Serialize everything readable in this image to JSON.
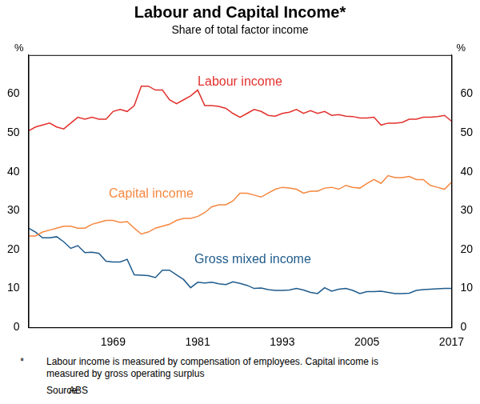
{
  "chart_data": {
    "type": "line",
    "title": "Labour and Capital Income*",
    "subtitle": "Share of total factor income",
    "ylabel": "%",
    "y2label": "%",
    "x": [
      1957,
      1958,
      1959,
      1960,
      1961,
      1962,
      1963,
      1964,
      1965,
      1966,
      1967,
      1968,
      1969,
      1970,
      1971,
      1972,
      1973,
      1974,
      1975,
      1976,
      1977,
      1978,
      1979,
      1980,
      1981,
      1982,
      1983,
      1984,
      1985,
      1986,
      1987,
      1988,
      1989,
      1990,
      1991,
      1992,
      1993,
      1994,
      1995,
      1996,
      1997,
      1998,
      1999,
      2000,
      2001,
      2002,
      2003,
      2004,
      2005,
      2006,
      2007,
      2008,
      2009,
      2010,
      2011,
      2012,
      2013,
      2014,
      2015,
      2016,
      2017
    ],
    "xlim": [
      1957,
      2017
    ],
    "xticks": [
      1969,
      1981,
      1993,
      2005,
      2017
    ],
    "ylim": [
      0,
      70
    ],
    "yticks": [
      0,
      10,
      20,
      30,
      40,
      50,
      60
    ],
    "y2lim": [
      0,
      70
    ],
    "y2ticks": [
      0,
      10,
      20,
      30,
      40,
      50,
      60
    ],
    "grid": false,
    "series": [
      {
        "name": "Labour income",
        "color": "#e2312d",
        "values": [
          50.5,
          51.5,
          52,
          52.5,
          51.5,
          51,
          52.5,
          54,
          53.5,
          54,
          53.5,
          53.5,
          55.5,
          56,
          55.5,
          57,
          62,
          62,
          61,
          61,
          58.5,
          57.5,
          58.5,
          59.5,
          61,
          57,
          57,
          56.8,
          56.3,
          55,
          54,
          55,
          56,
          55.5,
          54.5,
          54.3,
          55,
          55.3,
          56,
          55,
          55.7,
          55,
          55.5,
          54.5,
          54.7,
          54.3,
          54.2,
          53.8,
          53.8,
          54,
          52,
          52.5,
          52.5,
          52.7,
          53.5,
          53.5,
          54,
          54,
          54.2,
          54.5,
          53
        ]
      },
      {
        "name": "Capital income",
        "color": "#f5873f",
        "values": [
          23.5,
          23.5,
          24.5,
          25,
          25.5,
          26,
          26,
          25.5,
          25.5,
          26.5,
          27,
          27.5,
          27.5,
          27,
          27.2,
          25.5,
          24,
          24.5,
          25.5,
          26,
          26.5,
          27.5,
          28,
          28,
          28.5,
          29.5,
          31,
          31.5,
          31.5,
          32.5,
          34.5,
          34.5,
          34,
          33.5,
          34.5,
          35.5,
          36,
          35.8,
          35.5,
          34.5,
          35,
          35,
          35.8,
          36,
          35.5,
          36.5,
          36,
          35.8,
          37,
          38,
          37,
          39,
          38.5,
          38.5,
          38.8,
          38,
          38,
          36.5,
          36,
          35.5,
          37.3
        ]
      },
      {
        "name": "Gross mixed income",
        "color": "#1f5b8c",
        "values": [
          25.5,
          24.5,
          23,
          23,
          23.3,
          22,
          20.3,
          21,
          19.2,
          19.3,
          19,
          17,
          16.8,
          16.8,
          17.5,
          13.5,
          13.4,
          13.3,
          12.8,
          14.7,
          14.7,
          13.5,
          12.3,
          10.2,
          11.6,
          11.4,
          11.6,
          11.2,
          11,
          11.7,
          11.3,
          10.8,
          10,
          10.1,
          9.7,
          9.5,
          9.5,
          9.6,
          10,
          9.6,
          9,
          8.7,
          10.2,
          9.3,
          9.8,
          10,
          9.5,
          8.7,
          9.2,
          9.2,
          9.3,
          9,
          8.7,
          8.7,
          8.8,
          9.5,
          9.7,
          9.8,
          9.9,
          10,
          10
        ]
      }
    ],
    "footnote": {
      "marker": "*",
      "text": "Labour income is measured by compensation of employees. Capital income is measured by gross operating surplus"
    },
    "source": {
      "label": "Source:",
      "text": "ABS"
    }
  }
}
